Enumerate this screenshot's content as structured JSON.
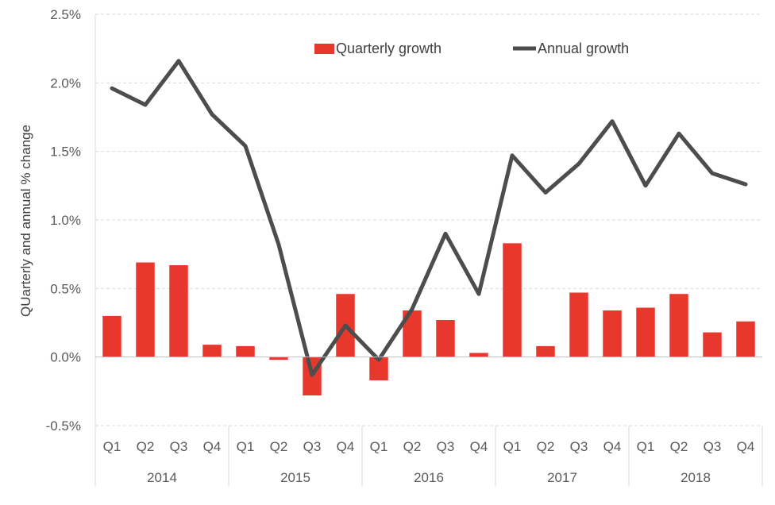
{
  "chart_data": {
    "type": "bar",
    "ylabel": "QUarterly and annual % change",
    "ylim": [
      -0.5,
      2.5
    ],
    "yticks": [
      -0.5,
      0.0,
      0.5,
      1.0,
      1.5,
      2.0,
      2.5
    ],
    "ytick_labels": [
      "-0.5%",
      "0.0%",
      "0.5%",
      "1.0%",
      "1.5%",
      "2.0%",
      "2.5%"
    ],
    "grid": true,
    "legend_position": "top-center",
    "categories": [
      "Q1",
      "Q2",
      "Q3",
      "Q4",
      "Q1",
      "Q2",
      "Q3",
      "Q4",
      "Q1",
      "Q2",
      "Q3",
      "Q4",
      "Q1",
      "Q2",
      "Q3",
      "Q4",
      "Q1",
      "Q2",
      "Q3",
      "Q4"
    ],
    "groups": [
      "2014",
      "2015",
      "2016",
      "2017",
      "2018"
    ],
    "series": [
      {
        "name": "Quarterly growth",
        "type": "bar",
        "color": "#e8382d",
        "values": [
          0.3,
          0.69,
          0.67,
          0.09,
          0.08,
          -0.02,
          -0.28,
          0.46,
          -0.17,
          0.34,
          0.27,
          0.03,
          0.83,
          0.08,
          0.47,
          0.34,
          0.36,
          0.46,
          0.18,
          0.26
        ]
      },
      {
        "name": "Annual growth",
        "type": "line",
        "color": "#4d4d4d",
        "values": [
          1.96,
          1.84,
          2.16,
          1.77,
          1.54,
          0.82,
          -0.13,
          0.23,
          -0.02,
          0.35,
          0.9,
          0.46,
          1.47,
          1.2,
          1.41,
          1.72,
          1.25,
          1.63,
          1.34,
          1.26
        ]
      }
    ]
  }
}
